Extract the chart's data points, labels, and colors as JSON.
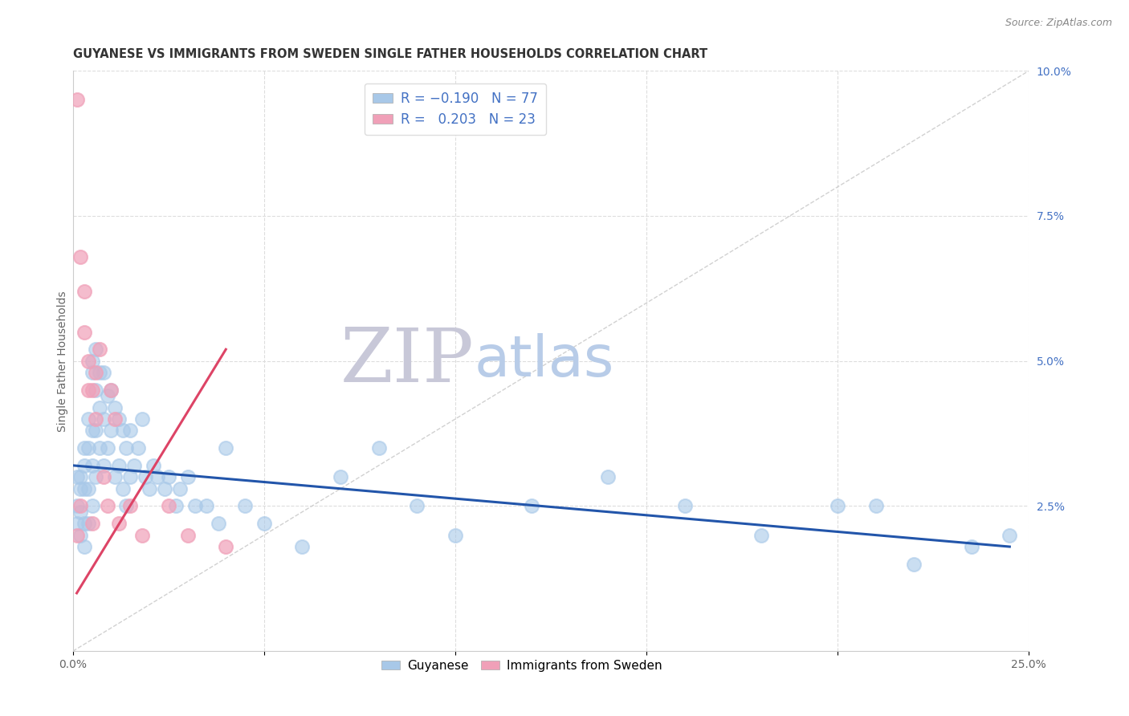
{
  "title": "GUYANESE VS IMMIGRANTS FROM SWEDEN SINGLE FATHER HOUSEHOLDS CORRELATION CHART",
  "source": "Source: ZipAtlas.com",
  "ylabel": "Single Father Households",
  "xlim": [
    0,
    0.25
  ],
  "ylim": [
    0,
    0.1
  ],
  "xtick_positions": [
    0.0,
    0.05,
    0.1,
    0.15,
    0.2,
    0.25
  ],
  "xtick_labels": [
    "0.0%",
    "",
    "",
    "",
    "",
    "25.0%"
  ],
  "yticks_right": [
    0.025,
    0.05,
    0.075,
    0.1
  ],
  "ytick_right_labels": [
    "2.5%",
    "5.0%",
    "7.5%",
    "10.0%"
  ],
  "guyanese_R": -0.19,
  "guyanese_N": 77,
  "sweden_R": 0.203,
  "sweden_N": 23,
  "blue_scatter_color": "#a8c8e8",
  "pink_scatter_color": "#f0a0b8",
  "blue_line_color": "#2255aa",
  "pink_line_color": "#dd4466",
  "diagonal_color": "#cccccc",
  "watermark_ZIP_color": "#c8c8d8",
  "watermark_atlas_color": "#b8cce8",
  "background_color": "#ffffff",
  "grid_color": "#dddddd",
  "title_color": "#333333",
  "legend_text_color": "#4472C4",
  "source_color": "#888888",
  "guyanese_x": [
    0.001,
    0.001,
    0.001,
    0.002,
    0.002,
    0.002,
    0.002,
    0.003,
    0.003,
    0.003,
    0.003,
    0.003,
    0.004,
    0.004,
    0.004,
    0.004,
    0.005,
    0.005,
    0.005,
    0.005,
    0.005,
    0.006,
    0.006,
    0.006,
    0.006,
    0.007,
    0.007,
    0.007,
    0.008,
    0.008,
    0.008,
    0.009,
    0.009,
    0.01,
    0.01,
    0.011,
    0.011,
    0.012,
    0.012,
    0.013,
    0.013,
    0.014,
    0.014,
    0.015,
    0.015,
    0.016,
    0.017,
    0.018,
    0.019,
    0.02,
    0.021,
    0.022,
    0.024,
    0.025,
    0.027,
    0.028,
    0.03,
    0.032,
    0.035,
    0.038,
    0.04,
    0.045,
    0.05,
    0.06,
    0.07,
    0.08,
    0.09,
    0.1,
    0.12,
    0.14,
    0.16,
    0.18,
    0.2,
    0.21,
    0.22,
    0.235,
    0.245
  ],
  "guyanese_y": [
    0.03,
    0.025,
    0.022,
    0.03,
    0.028,
    0.024,
    0.02,
    0.035,
    0.032,
    0.028,
    0.022,
    0.018,
    0.04,
    0.035,
    0.028,
    0.022,
    0.05,
    0.048,
    0.038,
    0.032,
    0.025,
    0.052,
    0.045,
    0.038,
    0.03,
    0.048,
    0.042,
    0.035,
    0.048,
    0.04,
    0.032,
    0.044,
    0.035,
    0.045,
    0.038,
    0.042,
    0.03,
    0.04,
    0.032,
    0.038,
    0.028,
    0.035,
    0.025,
    0.038,
    0.03,
    0.032,
    0.035,
    0.04,
    0.03,
    0.028,
    0.032,
    0.03,
    0.028,
    0.03,
    0.025,
    0.028,
    0.03,
    0.025,
    0.025,
    0.022,
    0.035,
    0.025,
    0.022,
    0.018,
    0.03,
    0.035,
    0.025,
    0.02,
    0.025,
    0.03,
    0.025,
    0.02,
    0.025,
    0.025,
    0.015,
    0.018,
    0.02
  ],
  "sweden_x": [
    0.001,
    0.001,
    0.002,
    0.002,
    0.003,
    0.003,
    0.004,
    0.004,
    0.005,
    0.005,
    0.006,
    0.006,
    0.007,
    0.008,
    0.009,
    0.01,
    0.011,
    0.012,
    0.015,
    0.018,
    0.025,
    0.03,
    0.04
  ],
  "sweden_y": [
    0.095,
    0.02,
    0.068,
    0.025,
    0.062,
    0.055,
    0.05,
    0.045,
    0.045,
    0.022,
    0.048,
    0.04,
    0.052,
    0.03,
    0.025,
    0.045,
    0.04,
    0.022,
    0.025,
    0.02,
    0.025,
    0.02,
    0.018
  ],
  "blue_trend_x0": 0.0,
  "blue_trend_y0": 0.032,
  "blue_trend_x1": 0.245,
  "blue_trend_y1": 0.018,
  "pink_trend_x0": 0.001,
  "pink_trend_y0": 0.01,
  "pink_trend_x1": 0.04,
  "pink_trend_y1": 0.052
}
